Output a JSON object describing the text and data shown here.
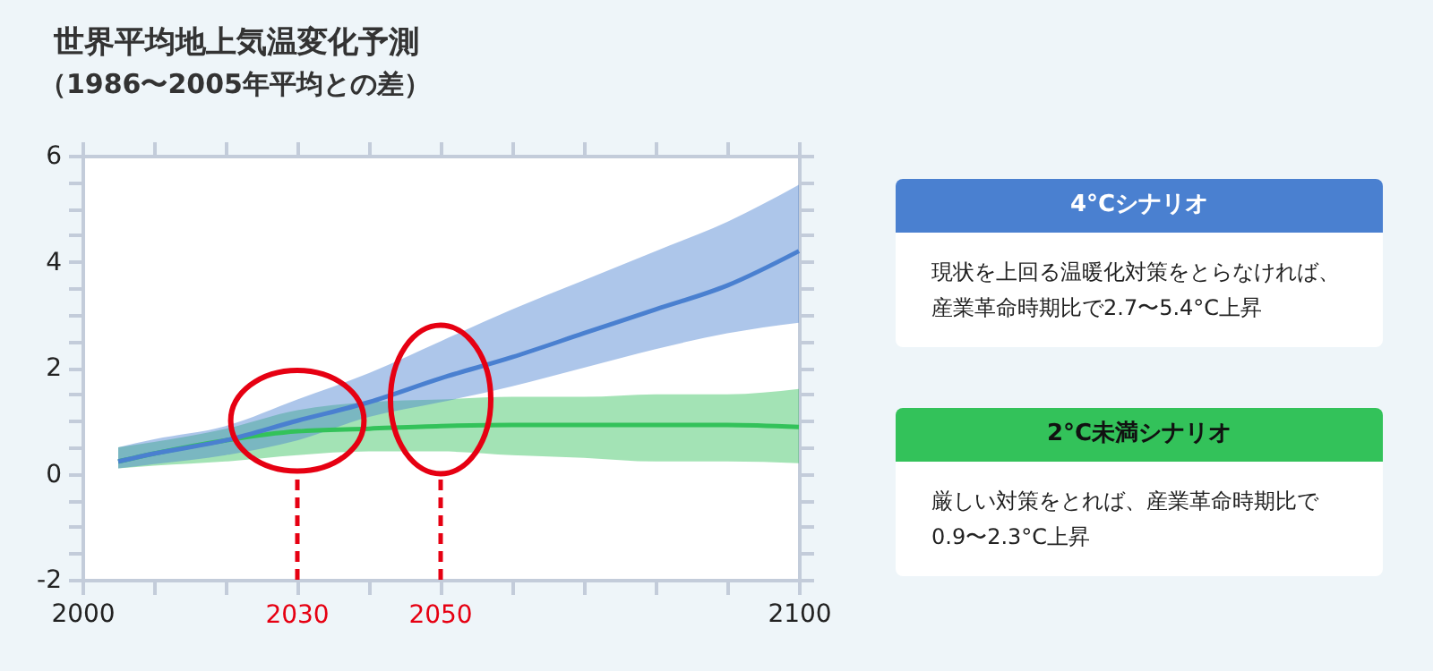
{
  "chart_data": {
    "type": "line",
    "title": "世界平均地上気温変化予測",
    "subtitle": "（1986〜2005年平均との差）",
    "x": [
      2005,
      2010,
      2020,
      2030,
      2040,
      2050,
      2060,
      2070,
      2080,
      2090,
      2100
    ],
    "series": [
      {
        "name": "2°C未満シナリオ",
        "color": "#33c25a",
        "values": [
          0.23,
          0.38,
          0.63,
          0.8,
          0.85,
          0.9,
          0.92,
          0.92,
          0.92,
          0.92,
          0.88
        ],
        "lower": [
          0.1,
          0.15,
          0.23,
          0.35,
          0.42,
          0.42,
          0.35,
          0.3,
          0.23,
          0.23,
          0.2
        ],
        "upper": [
          0.5,
          0.6,
          0.85,
          1.2,
          1.35,
          1.4,
          1.45,
          1.45,
          1.5,
          1.5,
          1.6
        ]
      },
      {
        "name": "4°Cシナリオ",
        "color": "#4a80d0",
        "values": [
          0.23,
          0.38,
          0.63,
          1.0,
          1.35,
          1.8,
          2.2,
          2.65,
          3.1,
          3.55,
          4.2
        ],
        "lower": [
          0.1,
          0.18,
          0.35,
          0.63,
          1.07,
          1.35,
          1.65,
          2.0,
          2.35,
          2.65,
          2.85
        ],
        "upper": [
          0.5,
          0.65,
          0.9,
          1.4,
          1.9,
          2.5,
          3.1,
          3.65,
          4.2,
          4.75,
          5.45
        ]
      }
    ],
    "annotations": [
      "現状を上回る温暖化対策をとらなければ、産業革命時期比で2.7〜5.4°C上昇",
      "厳しい対策をとれば、産業革命時期比で0.9〜2.3°C上昇"
    ],
    "xlim": [
      2000,
      2100
    ],
    "ylim": [
      -2,
      6
    ],
    "xticks": [
      2000,
      {
        "value": 2010,
        "label": null
      },
      {
        "value": 2020,
        "label": null
      },
      {
        "value": 2030,
        "label": null
      },
      {
        "value": 2040,
        "label": null
      },
      {
        "value": 2050,
        "label": null
      },
      {
        "value": 2060,
        "label": null
      },
      {
        "value": 2070,
        "label": null
      },
      {
        "value": 2080,
        "label": null
      },
      {
        "value": 2090,
        "label": null
      },
      2100
    ],
    "yticks": [
      -2,
      {
        "value": -1.5,
        "label": null
      },
      {
        "value": -1,
        "label": null
      },
      {
        "value": -0.5,
        "label": null
      },
      0,
      {
        "value": 0.5,
        "label": null
      },
      {
        "value": 1,
        "label": null
      },
      {
        "value": 1.5,
        "label": null
      },
      2,
      {
        "value": 2.5,
        "label": null
      },
      {
        "value": 3,
        "label": null
      },
      {
        "value": 3.5,
        "label": null
      },
      4,
      {
        "value": 4.5,
        "label": null
      },
      {
        "value": 5,
        "label": null
      },
      {
        "value": 5.5,
        "label": null
      },
      6
    ],
    "ref_lines": [
      {
        "axis": "x",
        "value": 2030,
        "label": "2030",
        "color": "#e60012",
        "line_style": "dashed"
      },
      {
        "axis": "x",
        "value": 2050,
        "label": "2050",
        "color": "#e60012",
        "line_style": "dashed"
      }
    ],
    "grid": false,
    "legend": "right",
    "marker": "none",
    "line_style": "solid"
  }
}
